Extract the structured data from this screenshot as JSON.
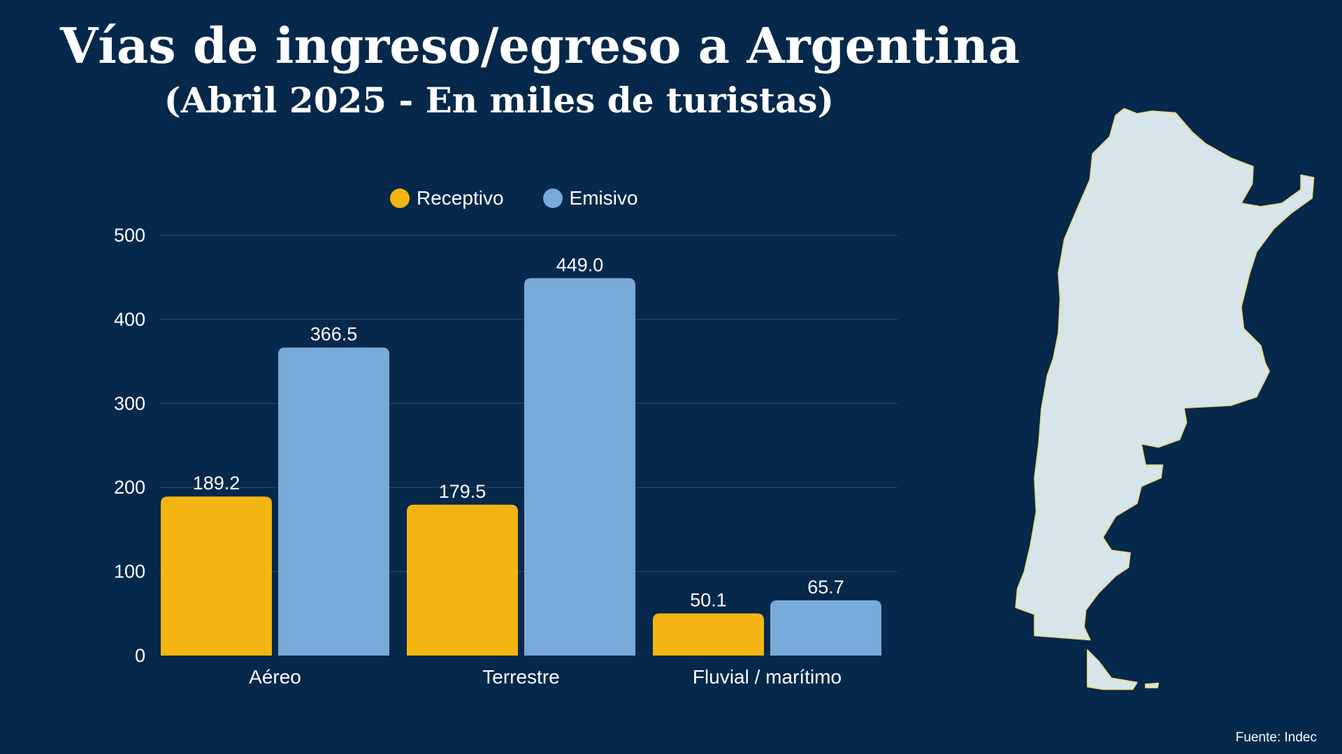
{
  "title": "Vías de ingreso/egreso a Argentina",
  "subtitle": "(Abril 2025 - En miles de turistas)",
  "source": "Fuente: Indec",
  "colors": {
    "background": "#05284b",
    "receptivo": "#f4b512",
    "emisivo": "#78aad9",
    "map": "#d6e5ea"
  },
  "chart_data": {
    "type": "bar",
    "categories": [
      "Aéreo",
      "Terrestre",
      "Fluvial / marítimo"
    ],
    "series": [
      {
        "name": "Receptivo",
        "values": [
          189.2,
          179.5,
          50.1
        ],
        "labels": [
          "189.2",
          "179.5",
          "50.1"
        ]
      },
      {
        "name": "Emisivo",
        "values": [
          366.5,
          449.0,
          65.7
        ],
        "labels": [
          "366.5",
          "449.0",
          "65.7"
        ]
      }
    ],
    "yticks": [
      "0",
      "100",
      "200",
      "300",
      "400",
      "500"
    ],
    "ylim": [
      0,
      500
    ],
    "grid": true,
    "legend": "top"
  }
}
